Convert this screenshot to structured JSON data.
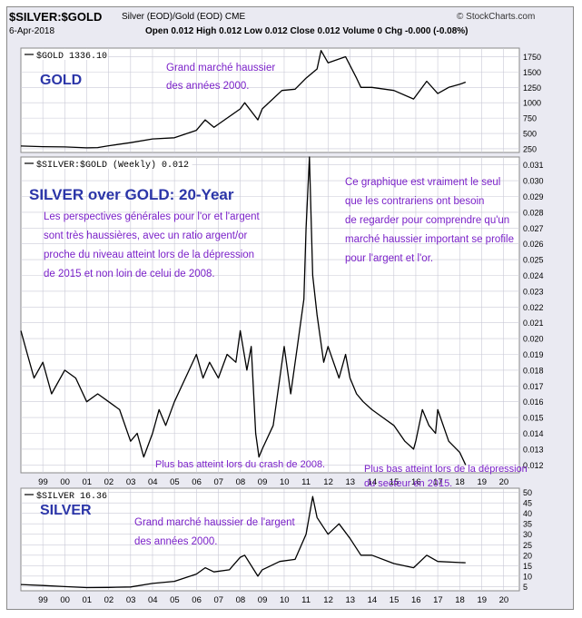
{
  "header": {
    "symbol": "$SILVER:$GOLD",
    "description": "Silver (EOD)/Gold (EOD) CME",
    "source": "© StockCharts.com",
    "date": "6-Apr-2018",
    "ohlc": "Open 0.012  High 0.012  Low 0.012  Close 0.012  Volume 0  Chg -0.000 (-0.08%)"
  },
  "colors": {
    "panel_bg": "#ffffff",
    "frame_bg": "#eaeaf2",
    "grid": "#c9c9d6",
    "line": "#000000",
    "title_blue": "#2b35a8",
    "annotation": "#7b22c9"
  },
  "chart_data": [
    {
      "type": "line",
      "name": "gold",
      "legend": "$GOLD 1336.10",
      "title": "GOLD",
      "annotation": "Grand marché haussier\ndes années 2000.",
      "ylim": [
        190,
        1890
      ],
      "yticks": [
        250,
        500,
        750,
        1000,
        1250,
        1500,
        1750
      ],
      "x": [
        1998.0,
        1999.0,
        2000.0,
        2001.0,
        2001.5,
        2002.0,
        2003.0,
        2004.0,
        2005.0,
        2006.0,
        2006.4,
        2006.8,
        2007.0,
        2008.0,
        2008.2,
        2008.8,
        2009.0,
        2009.9,
        2010.5,
        2011.0,
        2011.5,
        2011.68,
        2012.0,
        2012.8,
        2013.3,
        2013.5,
        2014.0,
        2015.0,
        2015.9,
        2016.5,
        2017.0,
        2017.5,
        2018.0,
        2018.27
      ],
      "values": [
        295,
        285,
        280,
        265,
        270,
        300,
        350,
        410,
        430,
        550,
        720,
        600,
        650,
        900,
        1000,
        720,
        900,
        1200,
        1220,
        1400,
        1550,
        1850,
        1650,
        1750,
        1400,
        1250,
        1250,
        1200,
        1060,
        1350,
        1150,
        1250,
        1300,
        1336
      ]
    },
    {
      "type": "line",
      "name": "silver-gold-ratio",
      "legend": "$SILVER:$GOLD (Weekly) 0.012",
      "title": "SILVER over GOLD: 20-Year",
      "annotation_left": "Les perspectives générales pour l'or et l'argent\nsont très haussières, avec un ratio argent/or\nproche du niveau atteint lors de la dépression\nde 2015 et non loin de celui de 2008.",
      "annotation_right": "Ce graphique est vraiment le seul\nque les contrariens ont besoin\nde regarder pour comprendre qu'un\nmarché haussier important se profile\npour l'argent et l'or.",
      "annotation_2008": "Plus bas atteint lors du crash de 2008.",
      "annotation_2015": "Plus bas atteint lors de la dépression\ndu secteur en 2015.",
      "ylim": [
        0.0115,
        0.0315
      ],
      "yticks": [
        0.012,
        0.013,
        0.014,
        0.015,
        0.016,
        0.017,
        0.018,
        0.019,
        0.02,
        0.021,
        0.022,
        0.023,
        0.024,
        0.025,
        0.026,
        0.027,
        0.028,
        0.029,
        0.03,
        0.031
      ],
      "x": [
        1998.0,
        1998.3,
        1998.6,
        1999.0,
        1999.4,
        2000.0,
        2000.5,
        2001.0,
        2001.5,
        2002.0,
        2002.5,
        2003.0,
        2003.3,
        2003.6,
        2004.0,
        2004.3,
        2004.6,
        2005.0,
        2005.5,
        2006.0,
        2006.3,
        2006.6,
        2007.0,
        2007.4,
        2007.8,
        2008.0,
        2008.3,
        2008.5,
        2008.7,
        2008.85,
        2009.0,
        2009.5,
        2010.0,
        2010.3,
        2010.6,
        2010.9,
        2011.0,
        2011.15,
        2011.3,
        2011.5,
        2011.8,
        2012.0,
        2012.5,
        2012.8,
        2013.0,
        2013.3,
        2013.6,
        2014.0,
        2014.5,
        2015.0,
        2015.5,
        2015.9,
        2016.0,
        2016.3,
        2016.6,
        2016.9,
        2017.0,
        2017.5,
        2018.0,
        2018.27
      ],
      "values": [
        0.0205,
        0.019,
        0.0175,
        0.0185,
        0.0165,
        0.018,
        0.0175,
        0.016,
        0.0165,
        0.016,
        0.0155,
        0.0135,
        0.014,
        0.0125,
        0.014,
        0.0155,
        0.0145,
        0.016,
        0.0175,
        0.019,
        0.0175,
        0.0185,
        0.0175,
        0.019,
        0.0185,
        0.0205,
        0.018,
        0.0195,
        0.014,
        0.0125,
        0.013,
        0.0145,
        0.0195,
        0.0165,
        0.0195,
        0.0225,
        0.027,
        0.0315,
        0.024,
        0.0215,
        0.0185,
        0.0195,
        0.0175,
        0.019,
        0.0175,
        0.0165,
        0.016,
        0.0155,
        0.015,
        0.0145,
        0.0135,
        0.013,
        0.0135,
        0.0155,
        0.0145,
        0.014,
        0.0155,
        0.0135,
        0.0128,
        0.012
      ]
    },
    {
      "type": "line",
      "name": "silver",
      "legend": "$SILVER 16.36",
      "title": "SILVER",
      "annotation": "Grand marché haussier de l'argent\ndes années 2000.",
      "ylim": [
        3,
        52
      ],
      "yticks": [
        5,
        10,
        15,
        20,
        25,
        30,
        35,
        40,
        45,
        50
      ],
      "x": [
        1998.0,
        1999.0,
        2000.0,
        2001.0,
        2002.0,
        2003.0,
        2004.0,
        2005.0,
        2006.0,
        2006.4,
        2006.8,
        2007.5,
        2008.0,
        2008.2,
        2008.8,
        2009.0,
        2009.8,
        2010.5,
        2011.0,
        2011.3,
        2011.5,
        2012.0,
        2012.5,
        2013.0,
        2013.5,
        2014.0,
        2015.0,
        2015.9,
        2016.5,
        2017.0,
        2018.0,
        2018.27
      ],
      "values": [
        6,
        5.5,
        5,
        4.5,
        4.6,
        4.8,
        6.5,
        7.5,
        11,
        14,
        12,
        13,
        19,
        20,
        10,
        13,
        17,
        18,
        30,
        48,
        38,
        30,
        35,
        28,
        20,
        20,
        16,
        14,
        20,
        17,
        16.5,
        16.4
      ]
    }
  ],
  "xaxis": {
    "labels": [
      "99",
      "00",
      "01",
      "02",
      "03",
      "04",
      "05",
      "06",
      "07",
      "08",
      "09",
      "10",
      "11",
      "12",
      "13",
      "14",
      "15",
      "16",
      "17",
      "18",
      "19",
      "20"
    ]
  }
}
